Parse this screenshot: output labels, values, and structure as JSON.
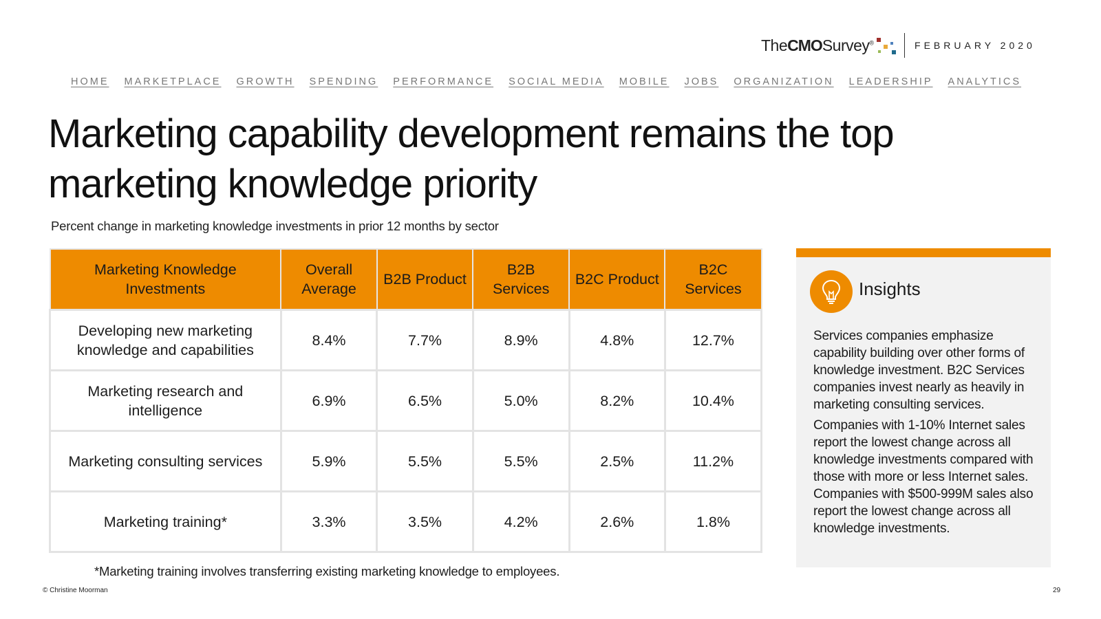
{
  "header": {
    "brand_prefix": "The",
    "brand_bold": "CMO",
    "brand_suffix": "Survey",
    "brand_mark": "®",
    "date": "FEBRUARY 2020",
    "dot_colors": [
      "#c0504d",
      "#e9a93a",
      "#4f81bd",
      "#9bbb59",
      "#1f6b8c"
    ]
  },
  "nav": {
    "items": [
      "HOME",
      "MARKETPLACE",
      "GROWTH",
      "SPENDING",
      "PERFORMANCE",
      "SOCIAL MEDIA",
      "MOBILE",
      "JOBS",
      "ORGANIZATION",
      "LEADERSHIP",
      "ANALYTICS"
    ]
  },
  "title": "Marketing capability development remains the top marketing knowledge priority",
  "subtitle": "Percent change in marketing knowledge investments in prior 12 months by sector",
  "table": {
    "headers": [
      "Marketing Knowledge Investments",
      "Overall Average",
      "B2B Product",
      "B2B Services",
      "B2C Product",
      "B2C Services"
    ],
    "rows": [
      {
        "label": "Developing new marketing knowledge and capabilities",
        "values": [
          "8.4%",
          "7.7%",
          "8.9%",
          "4.8%",
          "12.7%"
        ]
      },
      {
        "label": "Marketing research and intelligence",
        "values": [
          "6.9%",
          "6.5%",
          "5.0%",
          "8.2%",
          "10.4%"
        ]
      },
      {
        "label": "Marketing consulting services",
        "values": [
          "5.9%",
          "5.5%",
          "5.5%",
          "2.5%",
          "11.2%"
        ]
      },
      {
        "label": "Marketing training*",
        "values": [
          "3.3%",
          "3.5%",
          "4.2%",
          "2.6%",
          "1.8%"
        ]
      }
    ]
  },
  "footnote": "*Marketing training involves transferring existing marketing knowledge to employees.",
  "copyright": "© Christine Moorman",
  "page_number": "29",
  "insights": {
    "title": "Insights",
    "icon": "lightbulb-icon",
    "accent_color": "#ee8b00",
    "paragraphs": [
      "Services companies emphasize capability building over other forms of knowledge investment. B2C Services companies invest nearly as heavily in marketing consulting services.",
      "Companies with 1-10% Internet sales report the lowest change across all knowledge investments compared with those with more or less Internet sales. Companies with $500-999M sales also report the lowest change across all knowledge investments."
    ]
  }
}
